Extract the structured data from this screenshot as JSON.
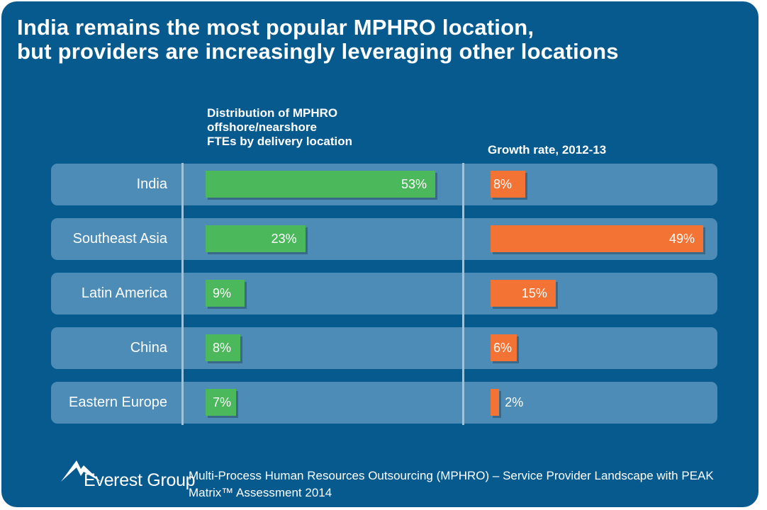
{
  "title": {
    "line1": "India remains the most popular MPHRO location,",
    "line2": "but providers are increasingly leveraging other locations"
  },
  "chart_data": [
    {
      "type": "bar",
      "title": "Distribution of MPHRO\noffshore/nearshore\nFTEs by delivery location",
      "categories": [
        "India",
        "Southeast Asia",
        "Latin America",
        "China",
        "Eastern Europe"
      ],
      "values": [
        53,
        23,
        9,
        8,
        7
      ],
      "value_labels": [
        "53%",
        "23%",
        "9%",
        "8%",
        "7%"
      ],
      "color": "#4cb85c"
    },
    {
      "type": "bar",
      "title": "Growth rate, 2012-13",
      "categories": [
        "India",
        "Southeast Asia",
        "Latin America",
        "China",
        "Eastern Europe"
      ],
      "values": [
        8,
        49,
        15,
        6,
        2
      ],
      "value_labels": [
        "8%",
        "49%",
        "15%",
        "6%",
        "2%"
      ],
      "color": "#f37335"
    }
  ],
  "footer": {
    "logo_text": "Everest Group",
    "source_text": "Multi-Process Human Resources Outsourcing (MPHRO) – Service Provider Landscape with PEAK Matrix™ Assessment 2014"
  },
  "colors": {
    "background": "#065a8e",
    "row": "#4c8cb6",
    "distribution_bar": "#4cb85c",
    "growth_bar": "#f37335"
  }
}
